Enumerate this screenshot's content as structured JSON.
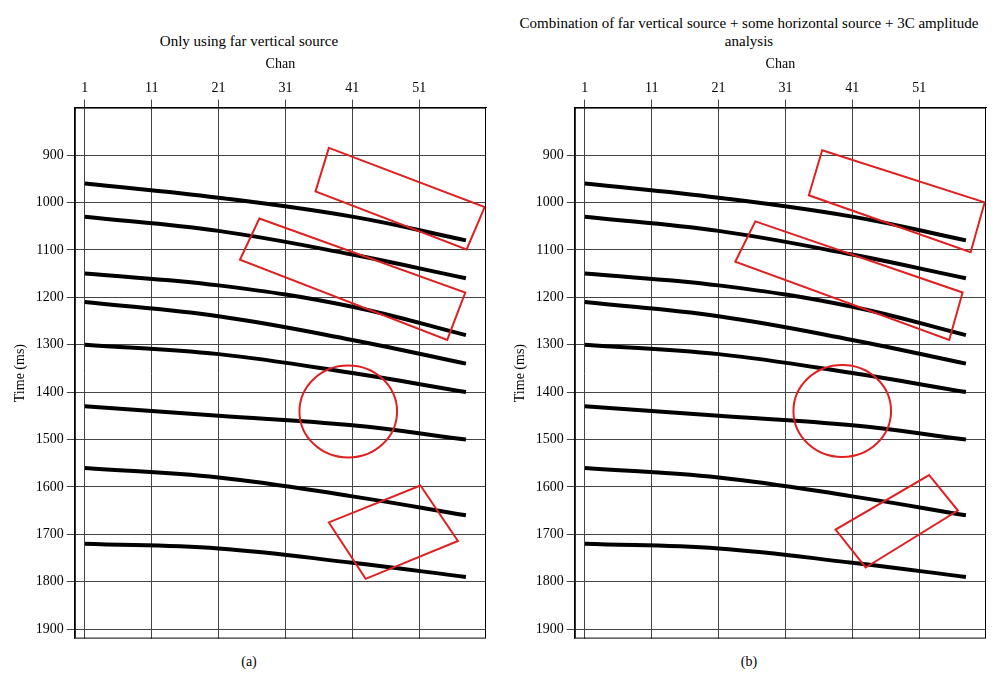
{
  "chart_data": [
    {
      "type": "line",
      "title": "Only using far vertical source",
      "caption": "(a)",
      "x_label": "Chan",
      "y_label": "Time (ms)",
      "xlim": [
        -0.5,
        61
      ],
      "xticks": [
        1,
        11,
        21,
        31,
        41,
        51
      ],
      "ylim": [
        1920,
        800
      ],
      "yticks": [
        900,
        1000,
        1100,
        1200,
        1300,
        1400,
        1500,
        1600,
        1700,
        1800,
        1900
      ],
      "grid": true,
      "x": [
        1,
        21,
        41,
        58
      ],
      "series": [
        {
          "color": "#000000",
          "values": [
            960,
            990,
            1030,
            1080
          ]
        },
        {
          "color": "#000000",
          "values": [
            1030,
            1060,
            1110,
            1160
          ]
        },
        {
          "color": "#000000",
          "values": [
            1150,
            1175,
            1220,
            1280
          ]
        },
        {
          "color": "#000000",
          "values": [
            1210,
            1240,
            1290,
            1340
          ]
        },
        {
          "color": "#000000",
          "values": [
            1300,
            1320,
            1360,
            1400
          ]
        },
        {
          "color": "#000000",
          "values": [
            1430,
            1450,
            1470,
            1500
          ]
        },
        {
          "color": "#000000",
          "values": [
            1560,
            1580,
            1620,
            1660
          ]
        },
        {
          "color": "#000000",
          "values": [
            1720,
            1730,
            1760,
            1790
          ]
        }
      ],
      "annotations": [
        {
          "type": "polygon",
          "color": "#e02020",
          "x": [
            37.5,
            60.8,
            58.1,
            35.5
          ],
          "y": [
            885,
            1010,
            1099,
            977
          ]
        },
        {
          "type": "polygon",
          "color": "#e02020",
          "x": [
            27.1,
            57.9,
            55.2,
            24.2
          ],
          "y": [
            1034,
            1190,
            1290,
            1121
          ]
        },
        {
          "type": "ellipse",
          "color": "#e02020",
          "center": [
            40.4,
            1441
          ],
          "radius_x": 7.3,
          "radius_y": 97
        },
        {
          "type": "polygon",
          "color": "#e02020",
          "x": [
            51.2,
            56.8,
            43.0,
            37.5
          ],
          "y": [
            1597,
            1714,
            1794,
            1675
          ]
        }
      ]
    },
    {
      "type": "line",
      "title": "Combination of far vertical source + some horizontal source + 3C amplitude analysis",
      "caption": "(b)",
      "x_label": "Chan",
      "y_label": "Time (ms)",
      "xlim": [
        -0.5,
        61
      ],
      "xticks": [
        1,
        11,
        21,
        31,
        41,
        51
      ],
      "ylim": [
        1920,
        800
      ],
      "yticks": [
        900,
        1000,
        1100,
        1200,
        1300,
        1400,
        1500,
        1600,
        1700,
        1800,
        1900
      ],
      "grid": true,
      "x": [
        1,
        21,
        41,
        58
      ],
      "series": [
        {
          "color": "#000000",
          "values": [
            960,
            990,
            1030,
            1080
          ]
        },
        {
          "color": "#000000",
          "values": [
            1030,
            1060,
            1110,
            1160
          ]
        },
        {
          "color": "#000000",
          "values": [
            1150,
            1175,
            1220,
            1280
          ]
        },
        {
          "color": "#000000",
          "values": [
            1210,
            1240,
            1290,
            1340
          ]
        },
        {
          "color": "#000000",
          "values": [
            1300,
            1320,
            1360,
            1400
          ]
        },
        {
          "color": "#000000",
          "values": [
            1430,
            1450,
            1470,
            1500
          ]
        },
        {
          "color": "#000000",
          "values": [
            1560,
            1580,
            1620,
            1660
          ]
        },
        {
          "color": "#000000",
          "values": [
            1720,
            1730,
            1760,
            1790
          ]
        }
      ],
      "annotations": [
        {
          "type": "polygon",
          "color": "#e02020",
          "x": [
            36.5,
            60.8,
            58.7,
            34.5
          ],
          "y": [
            890,
            1000,
            1105,
            985
          ]
        },
        {
          "type": "polygon",
          "color": "#e02020",
          "x": [
            26.5,
            57.5,
            55.5,
            23.5
          ],
          "y": [
            1040,
            1190,
            1290,
            1125
          ]
        },
        {
          "type": "ellipse",
          "color": "#e02020",
          "center": [
            39.5,
            1440
          ],
          "radius_x": 7.3,
          "radius_y": 97
        },
        {
          "type": "polygon",
          "color": "#e02020",
          "x": [
            52.5,
            56.8,
            43.0,
            38.5
          ],
          "y": [
            1575,
            1650,
            1770,
            1690
          ]
        }
      ]
    }
  ]
}
